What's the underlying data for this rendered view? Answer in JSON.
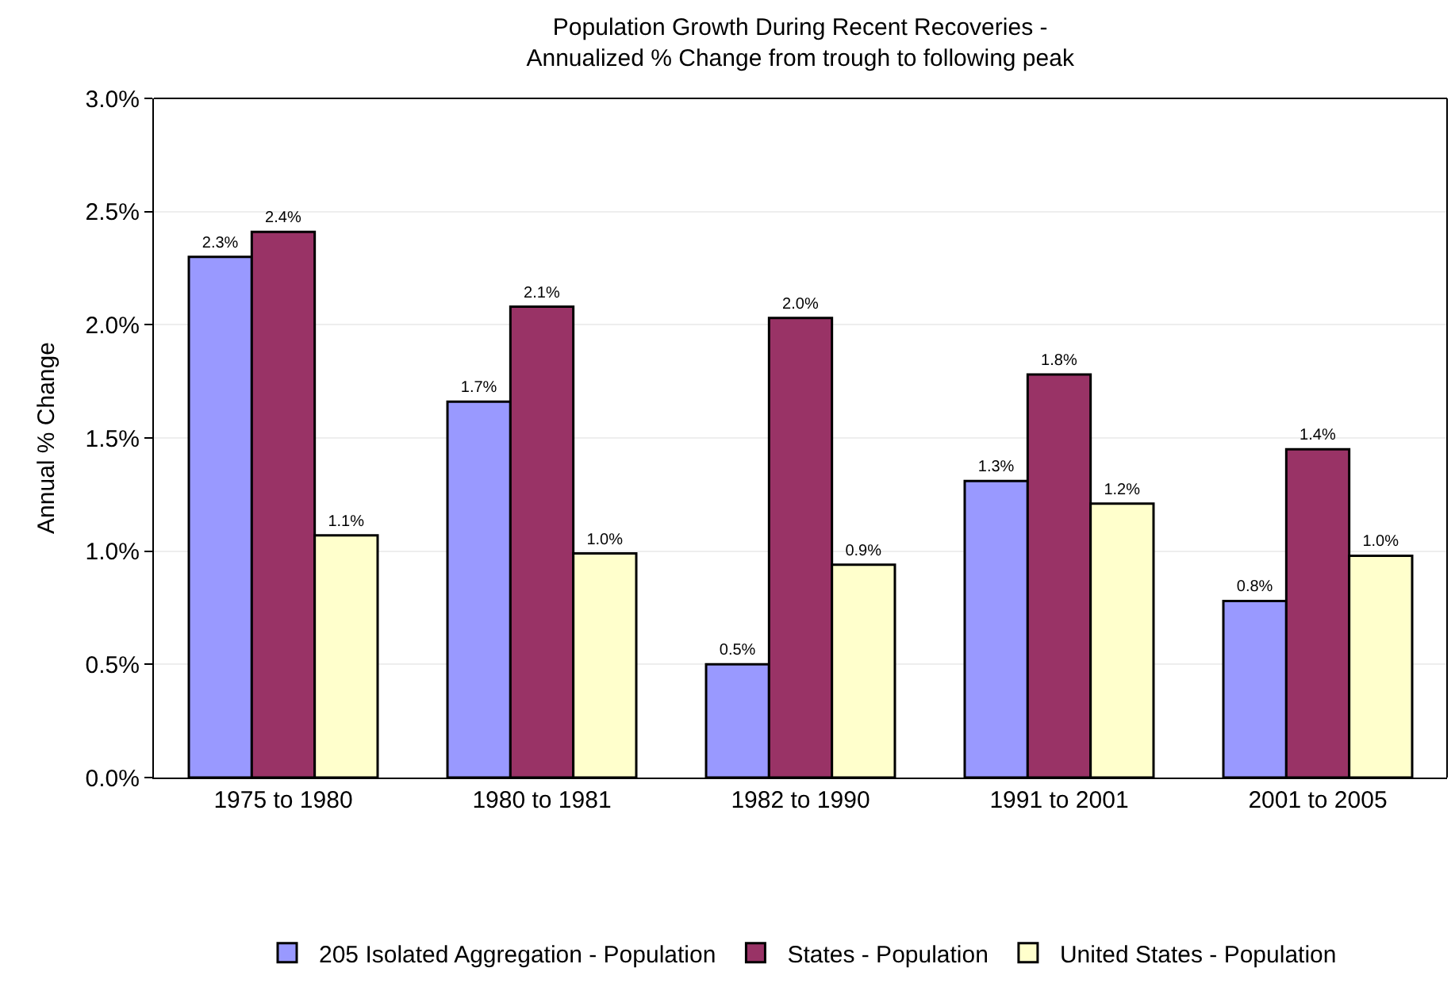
{
  "chart_data": {
    "type": "bar",
    "title": "Population Growth During Recent Recoveries -\nAnnualized % Change from trough to following peak",
    "ylabel": "Annual % Change",
    "categories": [
      "1975 to 1980",
      "1980 to 1981",
      "1982 to 1990",
      "1991 to 2001",
      "2001 to 2005"
    ],
    "series": [
      {
        "name": "205 Isolated Aggregation - Population",
        "color": "#9999ff",
        "values": [
          2.3,
          1.66,
          0.5,
          1.31,
          0.78
        ],
        "value_labels": [
          "2.3%",
          "1.7%",
          "0.5%",
          "1.3%",
          "0.8%"
        ]
      },
      {
        "name": "States - Population",
        "color": "#993366",
        "values": [
          2.41,
          2.08,
          2.03,
          1.78,
          1.45
        ],
        "value_labels": [
          "2.4%",
          "2.1%",
          "2.0%",
          "1.8%",
          "1.4%"
        ]
      },
      {
        "name": "United States - Population",
        "color": "#ffffcc",
        "values": [
          1.07,
          0.99,
          0.94,
          1.21,
          0.98
        ],
        "value_labels": [
          "1.1%",
          "1.0%",
          "0.9%",
          "1.2%",
          "1.0%"
        ]
      }
    ],
    "ylim": [
      0,
      3.0
    ],
    "yticks": [
      {
        "value": 0,
        "label": "0.0%"
      },
      {
        "value": 0.5,
        "label": "0.5%"
      },
      {
        "value": 1.0,
        "label": "1.0%"
      },
      {
        "value": 1.5,
        "label": "1.5%"
      },
      {
        "value": 2.0,
        "label": "2.0%"
      },
      {
        "value": 2.5,
        "label": "2.5%"
      },
      {
        "value": 3.0,
        "label": "3.0%"
      }
    ],
    "grid": "y",
    "legend": "bottom"
  }
}
